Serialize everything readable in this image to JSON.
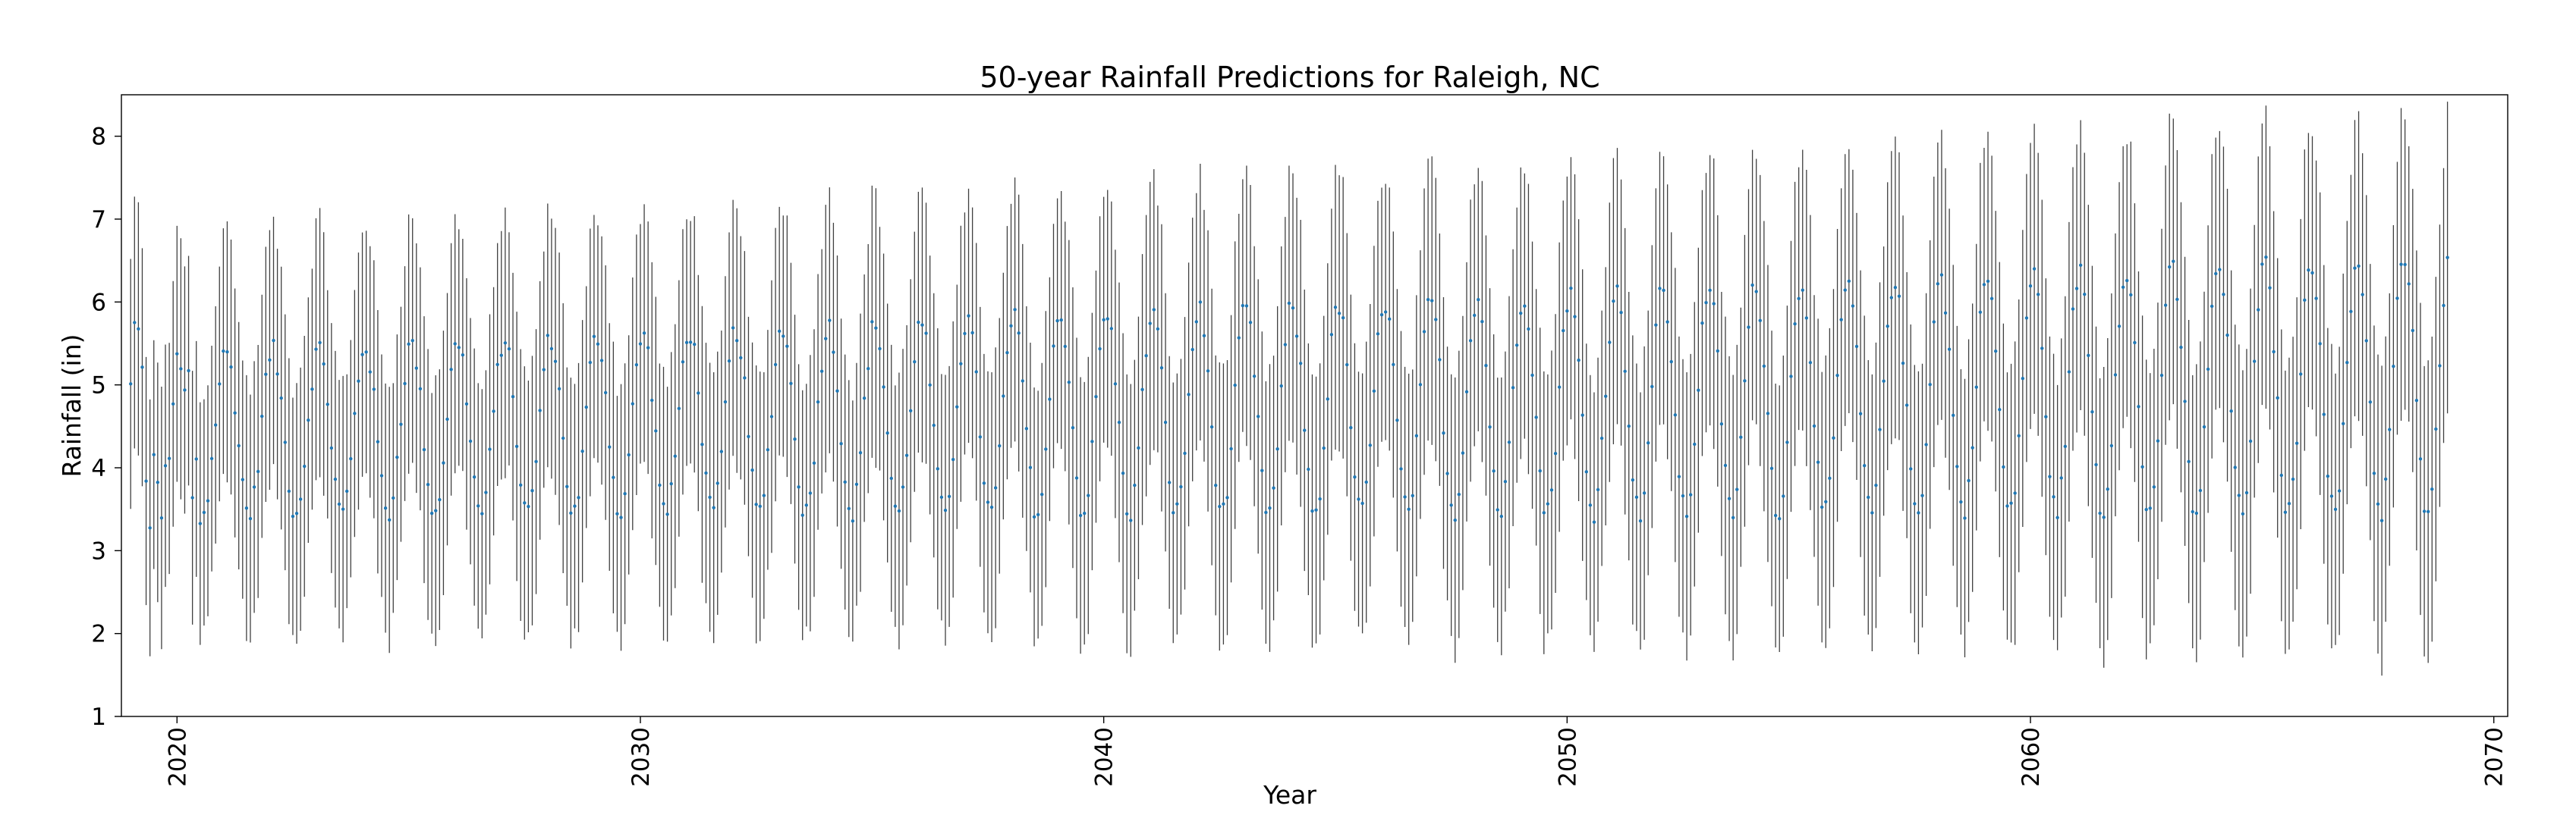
{
  "chart_data": {
    "type": "errorbar",
    "title": "50-year Rainfall Predictions for Raleigh, NC",
    "xlabel": "Year",
    "ylabel": "Rainfall (in)",
    "xlim": [
      2018.8,
      2070.3
    ],
    "ylim": [
      1.0,
      8.5
    ],
    "xticks": [
      2020,
      2030,
      2040,
      2050,
      2060,
      2070
    ],
    "yticks": [
      1,
      2,
      3,
      4,
      5,
      6,
      7,
      8
    ],
    "grid": false,
    "legend": "none",
    "series": [
      {
        "start": "2019-01",
        "end": "2069-01",
        "interval": "monthly",
        "count": 601,
        "marker_color": "#1f77b4",
        "errorbar_color": "#404040",
        "mean_values_sample": {
          "2019-01": 3.3,
          "2019-03": 6.3,
          "2019-06": 2.8,
          "2020-01": 4.9,
          "2021-08": 5.8,
          "2023-01": 3.0,
          "2030-01": 3.7,
          "2040-01": 4.0,
          "2050-01": 4.2,
          "2060-01": 4.3,
          "2069-01": 5.0
        },
        "typical_mean_range": [
          3.3,
          6.5
        ],
        "error_range_low": [
          1.3,
          2.2
        ],
        "error_range_high": [
          6.3,
          8.2
        ]
      }
    ]
  }
}
